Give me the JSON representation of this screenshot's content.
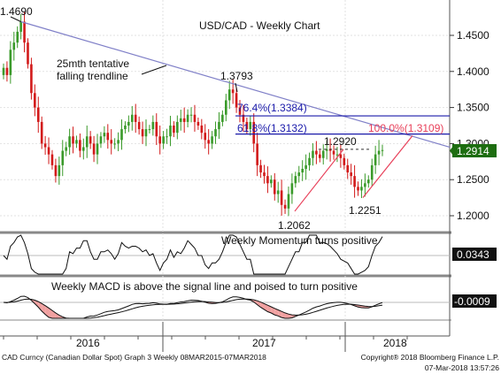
{
  "chart_data": {
    "type": "line",
    "title": "USD/CAD - Weekly Chart",
    "x_labels": [
      "2016",
      "2017",
      "2018"
    ],
    "price_panel": {
      "ylim": [
        1.185,
        1.485
      ],
      "y_ticks": [
        "1.4500",
        "1.4000",
        "1.3500",
        "1.3000",
        "1.2500",
        "1.2000"
      ],
      "last_value": "1.2914",
      "series": {
        "values": [
          1.405,
          1.395,
          1.43,
          1.44,
          1.455,
          1.469,
          1.44,
          1.41,
          1.37,
          1.35,
          1.33,
          1.3,
          1.295,
          1.285,
          1.27,
          1.255,
          1.27,
          1.29,
          1.295,
          1.31,
          1.3,
          1.305,
          1.29,
          1.295,
          1.31,
          1.3,
          1.285,
          1.3,
          1.31,
          1.315,
          1.305,
          1.3,
          1.3,
          1.305,
          1.32,
          1.325,
          1.33,
          1.34,
          1.33,
          1.32,
          1.31,
          1.32,
          1.32,
          1.33,
          1.31,
          1.3,
          1.31,
          1.31,
          1.325,
          1.315,
          1.33,
          1.335,
          1.33,
          1.34,
          1.34,
          1.33,
          1.325,
          1.315,
          1.305,
          1.3,
          1.31,
          1.32,
          1.33,
          1.34,
          1.36,
          1.375,
          1.37,
          1.35,
          1.34,
          1.33,
          1.32,
          1.33,
          1.3,
          1.27,
          1.26,
          1.255,
          1.245,
          1.25,
          1.23,
          1.235,
          1.215,
          1.21,
          1.23,
          1.245,
          1.255,
          1.26,
          1.265,
          1.27,
          1.28,
          1.29,
          1.285,
          1.28,
          1.29,
          1.292,
          1.29,
          1.285,
          1.285,
          1.28,
          1.27,
          1.26,
          1.255,
          1.24,
          1.235,
          1.24,
          1.245,
          1.25,
          1.27,
          1.285,
          1.29,
          1.291
        ]
      },
      "annotations": {
        "high_label": "1.4690",
        "mid_high_label": "1.3793",
        "swing_high_label": "1.2920",
        "low1_label": "1.2062",
        "low2_label": "1.2251",
        "trendline_label_line1": "25mth tentative",
        "trendline_label_line2": "falling trendline",
        "fib_764_label": "76.4%(1.3384)",
        "fib_618_label": "61.8%(1.3132)",
        "proj_100_label": "100.0%(1.3109)",
        "fib_764_value": 1.3384,
        "fib_618_value": 1.3132,
        "swing_high_value": 1.292
      },
      "trendline": {
        "start": 1.469,
        "end_projection": 1.295
      }
    },
    "momentum_panel": {
      "title": "Weekly Momentum turns positive",
      "last_value": "0.0343"
    },
    "macd_panel": {
      "title": "Weekly MACD is above the signal line and poised to turn positive",
      "last_value": "-0.0009"
    }
  },
  "footer": {
    "left": "CAD Curncy (Canadian Dollar Spot) Graph 3  Weekly 08MAR2015-07MAR2018",
    "right_line1": "Copyright® 2018 Bloomberg Finance L.P.",
    "right_line2": "07-Mar-2018 13:57:26"
  },
  "colors": {
    "candle_up": "#3a9a2a",
    "candle_down": "#d21a1a",
    "trendline": "#8080c8",
    "fib": "#1a1aaa",
    "projection": "#e8405a",
    "macd_fill": "#f0a0a0",
    "label_box": "#1d6d10"
  }
}
